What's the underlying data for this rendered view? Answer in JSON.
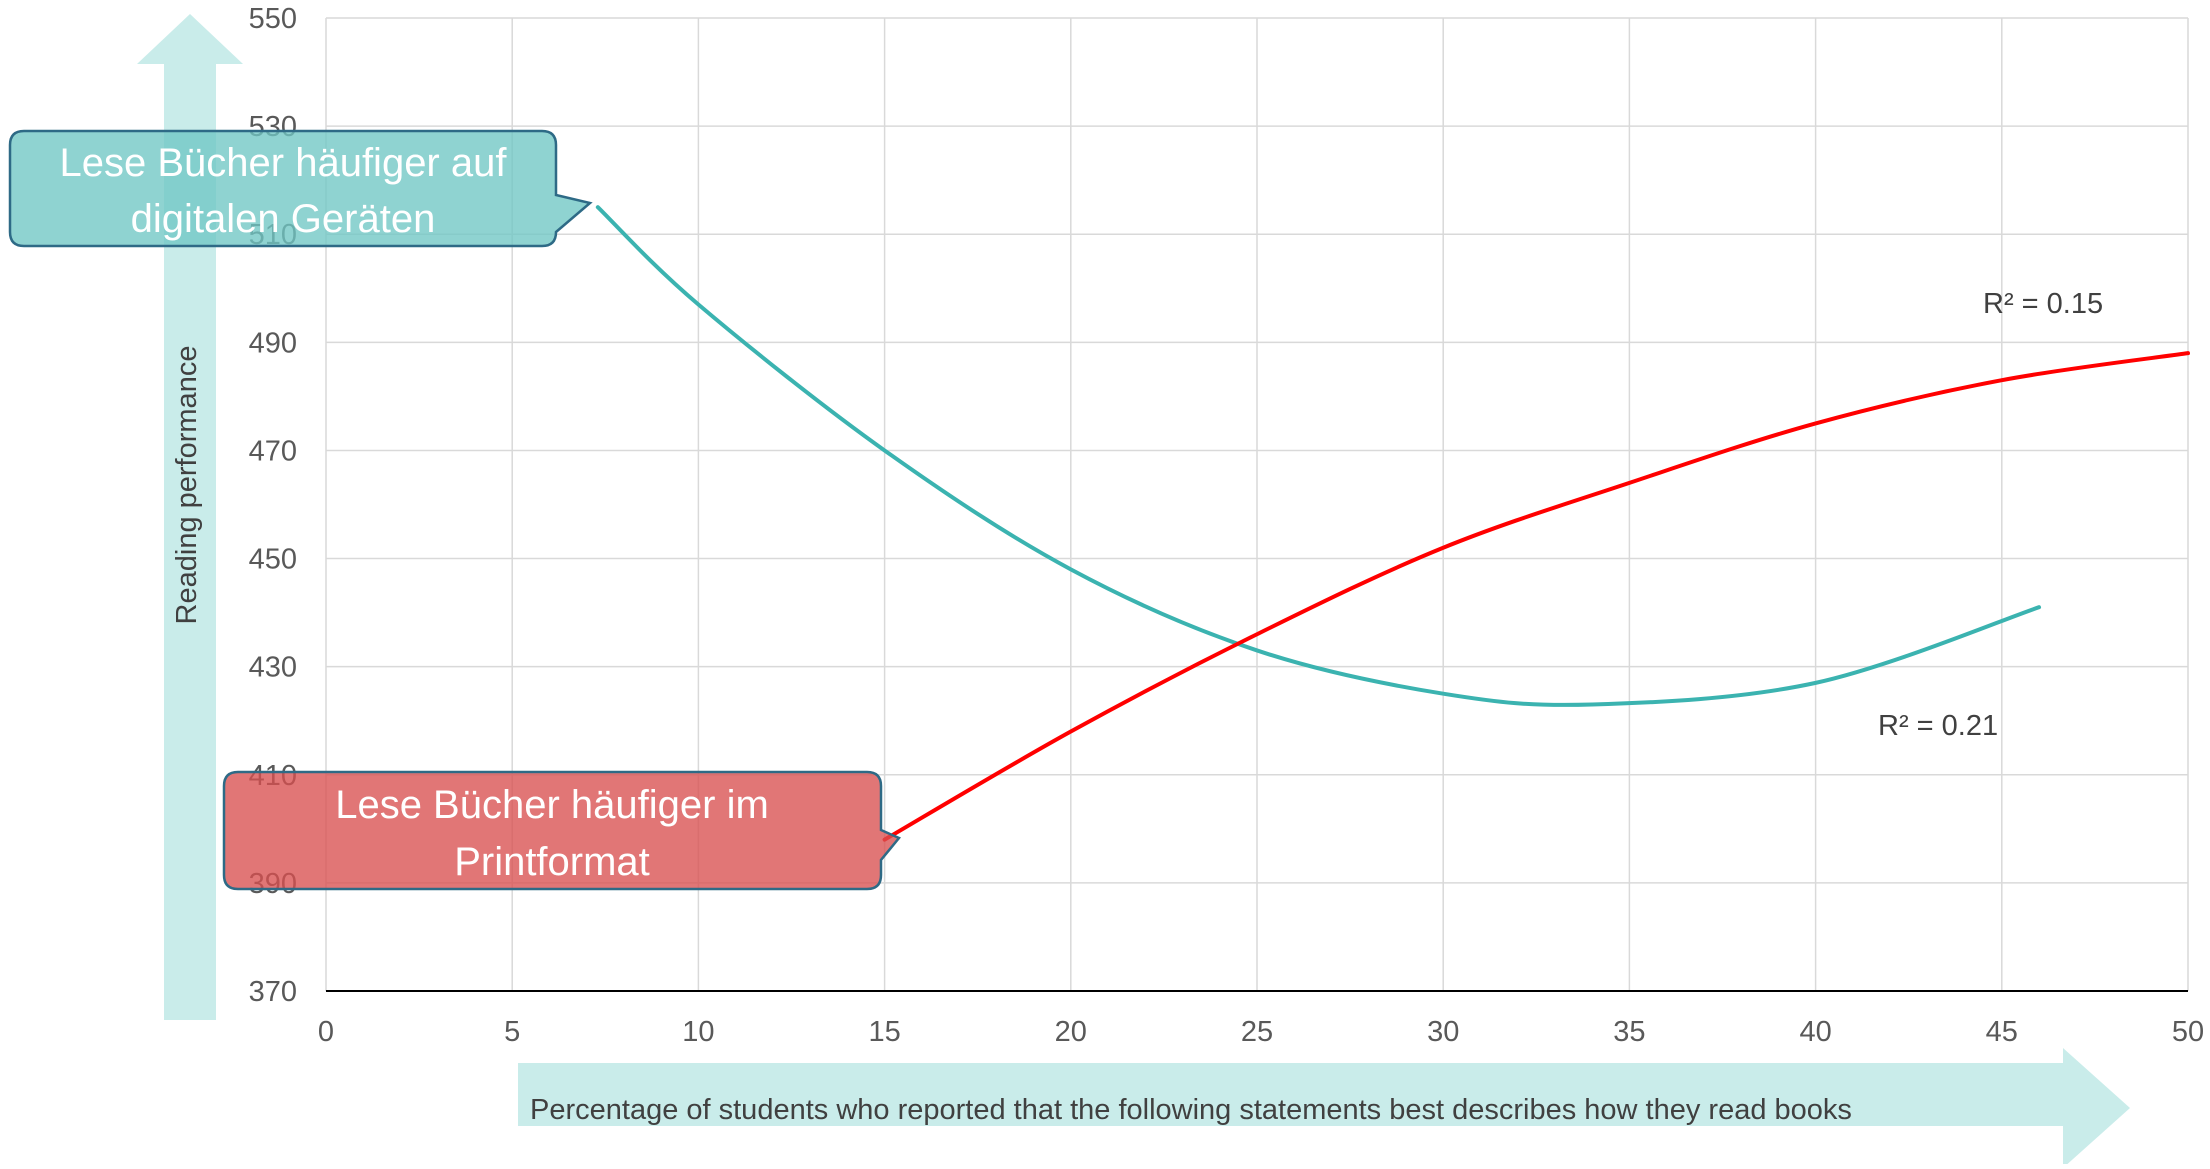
{
  "chart_data": {
    "type": "line",
    "xlabel": "Percentage of students who reported that the following statements best describes how they read books",
    "ylabel": "Reading performance",
    "xlim": [
      0,
      50
    ],
    "ylim": [
      370,
      550
    ],
    "x_ticks": [
      0,
      5,
      10,
      15,
      20,
      25,
      30,
      35,
      40,
      45,
      50
    ],
    "y_ticks": [
      370,
      390,
      410,
      430,
      450,
      470,
      490,
      510,
      530,
      550
    ],
    "grid": true,
    "series": [
      {
        "name": "Lese Bücher häufiger auf digitalen Geräten",
        "color": "#3bb3b0",
        "r_squared_label": "R² = 0.21",
        "x": [
          7.3,
          10,
          15,
          20,
          25,
          30,
          34,
          40,
          46
        ],
        "y": [
          515,
          497,
          470,
          448,
          433,
          425,
          423,
          427,
          441
        ]
      },
      {
        "name": "Lese Bücher häufiger im Printformat",
        "color": "#ff0000",
        "r_squared_label": "R² = 0.15",
        "x": [
          15,
          20,
          25,
          30,
          35,
          40,
          45,
          50
        ],
        "y": [
          398,
          418,
          436,
          452,
          464,
          475,
          483,
          488
        ]
      }
    ]
  },
  "callouts": {
    "digital": {
      "line1": "Lese Bücher häufiger auf",
      "line2": "digitalen Geräten"
    },
    "print": {
      "line1": "Lese Bücher häufiger im",
      "line2": "Printformat"
    }
  },
  "colors": {
    "digital": "#3bb3b0",
    "print": "#ff0000",
    "arrow": "#c9ecea",
    "grid": "#d9d9d9"
  }
}
